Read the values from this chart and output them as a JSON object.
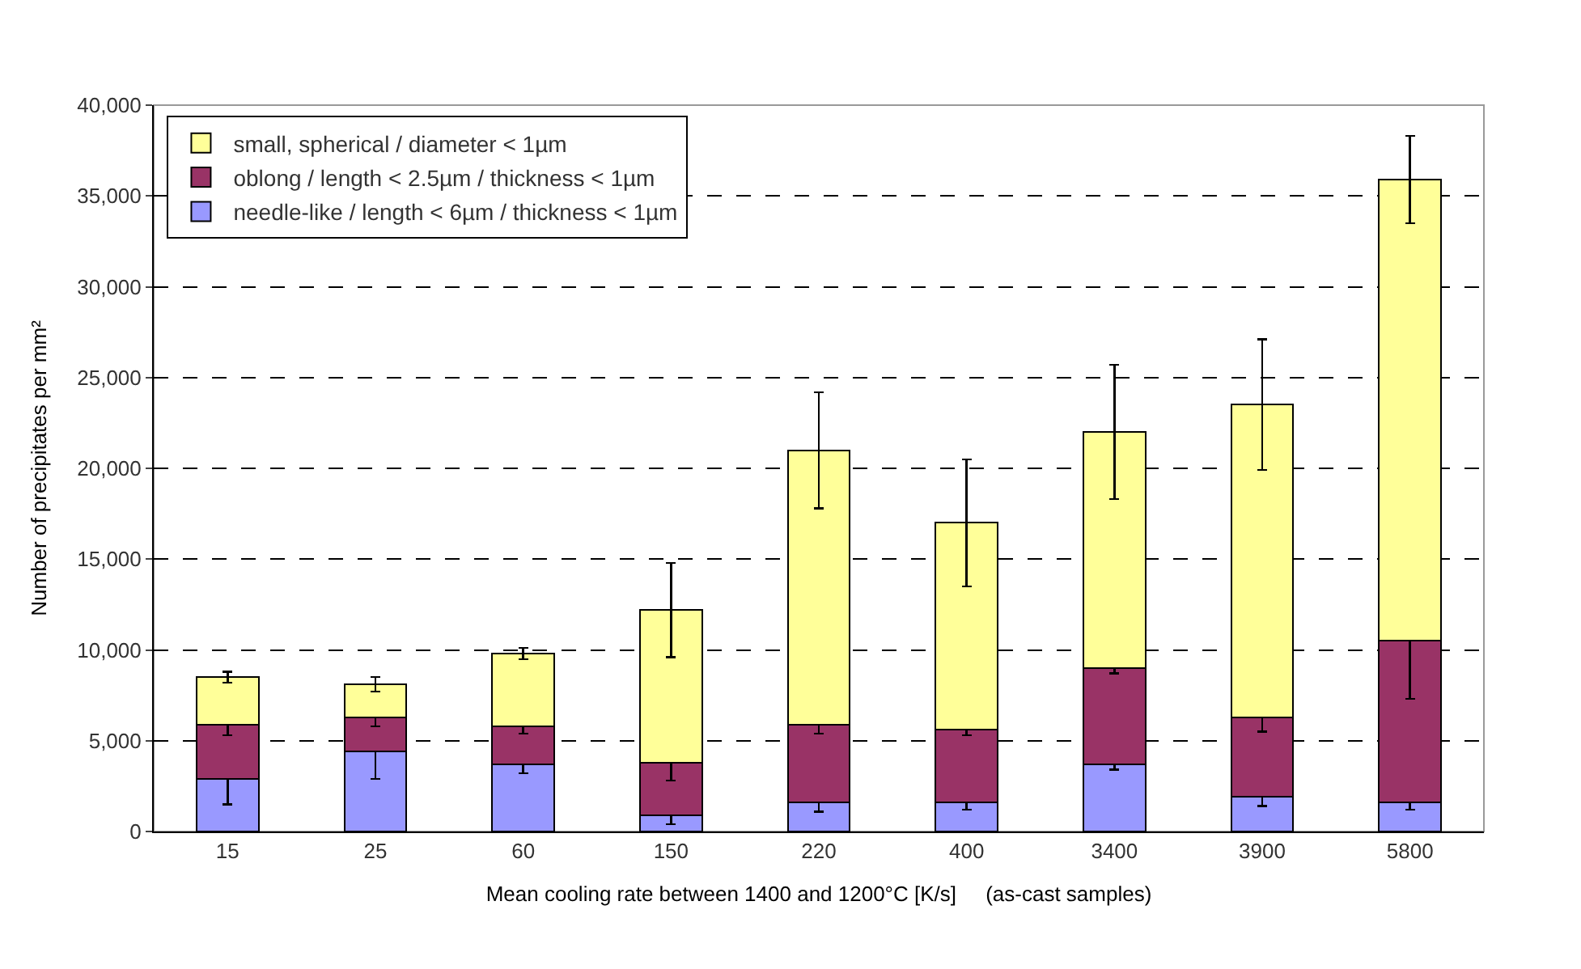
{
  "chart_data": {
    "type": "bar",
    "stacked": true,
    "xlabel": "Mean cooling rate between 1400 and 1200°C [K/s]     (as-cast samples)",
    "ylabel": "Number of precipitates per mm²",
    "categories": [
      "15",
      "25",
      "60",
      "150",
      "220",
      "400",
      "3400",
      "3900",
      "5800"
    ],
    "series": [
      {
        "name": "needle-like / length < 6µm / thickness < 1µm",
        "color": "#9999ff",
        "values": [
          2900,
          4400,
          3700,
          900,
          1600,
          1600,
          3700,
          1900,
          1600
        ],
        "errors": [
          1400,
          1500,
          500,
          500,
          500,
          400,
          300,
          500,
          400
        ]
      },
      {
        "name": "oblong / length < 2.5µm / thickness < 1µm",
        "color": "#993366",
        "values": [
          3000,
          1900,
          2100,
          2900,
          4300,
          4000,
          5300,
          4400,
          8900
        ],
        "errors": [
          600,
          500,
          400,
          1000,
          500,
          300,
          300,
          800,
          3200
        ]
      },
      {
        "name": "small, spherical / diameter < 1µm",
        "color": "#ffff99",
        "values": [
          2600,
          1800,
          4000,
          8400,
          15100,
          11400,
          13000,
          17200,
          25400
        ],
        "errors": [
          300,
          400,
          300,
          2600,
          3200,
          3500,
          3700,
          3600,
          2400
        ]
      }
    ],
    "ylim": [
      0,
      40000
    ],
    "yticks": [
      {
        "value": 0,
        "label": "0"
      },
      {
        "value": 5000,
        "label": "5,000"
      },
      {
        "value": 10000,
        "label": "10,000"
      },
      {
        "value": 15000,
        "label": "15,000"
      },
      {
        "value": 20000,
        "label": "20,000"
      },
      {
        "value": 25000,
        "label": "25,000"
      },
      {
        "value": 30000,
        "label": "30,000"
      },
      {
        "value": 35000,
        "label": "35,000"
      },
      {
        "value": 40000,
        "label": "40,000"
      }
    ],
    "grid": "y",
    "legend": "top left"
  }
}
